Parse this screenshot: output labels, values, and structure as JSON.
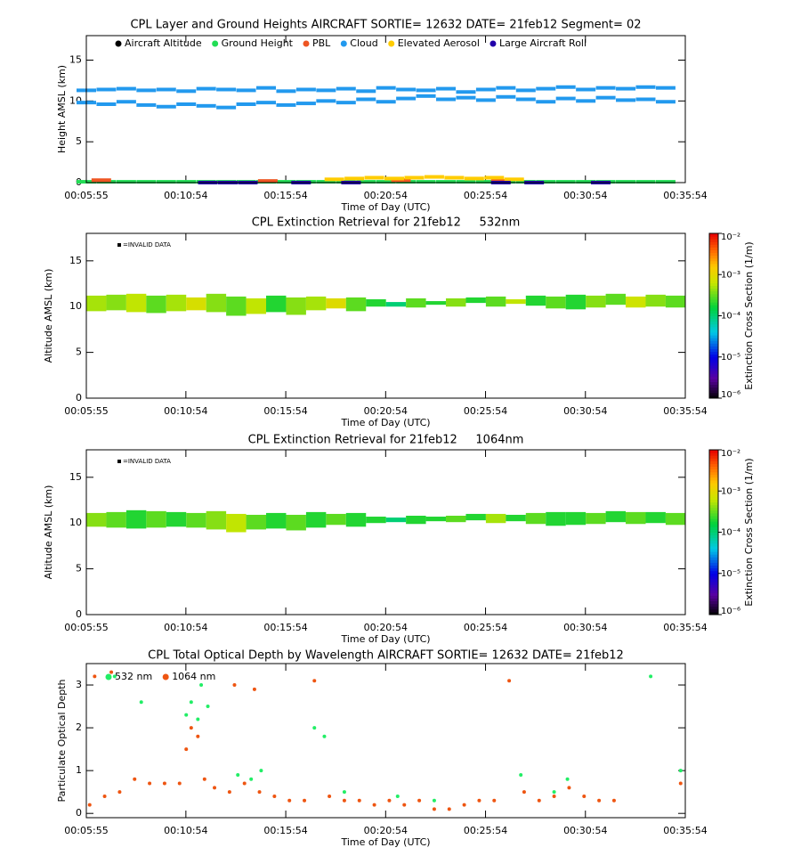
{
  "chart_data": [
    {
      "type": "scatter",
      "marker": "dash",
      "title": "CPL Layer and Ground Heights AIRCRAFT SORTIE= 12632 DATE= 21feb12 Segment= 02",
      "xlabel": "Time of Day (UTC)",
      "ylabel": "Height AMSL (km)",
      "xlim": [
        355,
        2154
      ],
      "ylim": [
        0,
        18
      ],
      "yticks": [
        0,
        5,
        10,
        15
      ],
      "xticks": [
        {
          "value": 355,
          "label": "00:05:55"
        },
        {
          "value": 654,
          "label": "00:10:54"
        },
        {
          "value": 954,
          "label": "00:15:54"
        },
        {
          "value": 1254,
          "label": "00:20:54"
        },
        {
          "value": 1554,
          "label": "00:25:54"
        },
        {
          "value": 1854,
          "label": "00:30:54"
        },
        {
          "value": 2154,
          "label": "00:35:54"
        }
      ],
      "series": [
        {
          "name": "Aircraft Altitude",
          "color": "#000000",
          "x": [],
          "values": []
        },
        {
          "name": "Ground Height",
          "color": "#22dd55",
          "x": [
            355,
            415,
            475,
            535,
            595,
            655,
            715,
            775,
            835,
            895,
            955,
            1015,
            1075,
            1135,
            1195,
            1255,
            1315,
            1375,
            1435,
            1495,
            1555,
            1615,
            1675,
            1735,
            1795,
            1855,
            1915,
            1975,
            2035,
            2095
          ],
          "values": [
            0.1,
            0.1,
            0.1,
            0.1,
            0.1,
            0.1,
            0.1,
            0.1,
            0.1,
            0.1,
            0.1,
            0.1,
            0.1,
            0.1,
            0.1,
            0.1,
            0.1,
            0.1,
            0.1,
            0.1,
            0.1,
            0.1,
            0.1,
            0.1,
            0.1,
            0.1,
            0.1,
            0.1,
            0.1,
            0.1
          ]
        },
        {
          "name": "PBL",
          "color": "#ee5522",
          "x": [
            400,
            900,
            1300,
            1600
          ],
          "values": [
            0.3,
            0.2,
            0.3,
            0.2
          ]
        },
        {
          "name": "Cloud",
          "color": "#2299ee",
          "x": [
            355,
            415,
            475,
            535,
            595,
            655,
            715,
            775,
            835,
            895,
            955,
            1015,
            1075,
            1135,
            1195,
            1255,
            1315,
            1375,
            1435,
            1495,
            1555,
            1615,
            1675,
            1735,
            1795,
            1855,
            1915,
            1975,
            2035,
            2095,
            355,
            415,
            475,
            535,
            595,
            655,
            715,
            775,
            835,
            895,
            955,
            1015,
            1075,
            1135,
            1195,
            1255,
            1315,
            1375,
            1435,
            1495,
            1555,
            1615,
            1675,
            1735,
            1795,
            1855,
            1915,
            1975,
            2035,
            2095
          ],
          "values": [
            11.3,
            11.4,
            11.5,
            11.3,
            11.4,
            11.2,
            11.5,
            11.4,
            11.3,
            11.6,
            11.2,
            11.4,
            11.3,
            11.5,
            11.2,
            11.6,
            11.4,
            11.3,
            11.5,
            11.1,
            11.4,
            11.6,
            11.3,
            11.5,
            11.7,
            11.4,
            11.6,
            11.5,
            11.7,
            11.6,
            9.8,
            9.6,
            9.9,
            9.5,
            9.3,
            9.6,
            9.4,
            9.2,
            9.6,
            9.8,
            9.5,
            9.7,
            10.0,
            9.8,
            10.2,
            9.9,
            10.3,
            10.6,
            10.2,
            10.4,
            10.1,
            10.5,
            10.2,
            9.9,
            10.3,
            10.0,
            10.4,
            10.1,
            10.2,
            9.9
          ]
        },
        {
          "name": "Elevated Aerosol",
          "color": "#ffcc00",
          "x": [
            1100,
            1160,
            1220,
            1280,
            1340,
            1400,
            1460,
            1520,
            1580,
            1640
          ],
          "values": [
            0.4,
            0.5,
            0.6,
            0.5,
            0.6,
            0.7,
            0.6,
            0.5,
            0.6,
            0.4
          ]
        },
        {
          "name": "Large Aircraft Roll",
          "color": "#2200aa",
          "x": [
            720,
            780,
            840,
            1000,
            1150,
            1600,
            1700,
            1900
          ],
          "values": [
            0,
            0,
            0,
            0,
            0,
            0,
            0,
            0
          ]
        }
      ]
    },
    {
      "type": "curtain",
      "title": "CPL Extinction Retrieval for 21feb12     532nm",
      "xlabel": "Time of Day (UTC)",
      "ylabel": "Altitude AMSL (km)",
      "note": "=INVALID DATA",
      "colorbar_label": "Extinction Cross Section (1/m)",
      "log_color": true,
      "clim": [
        1e-06,
        0.01
      ],
      "cticks": [
        {
          "value": 1e-06,
          "label": "10⁻⁶"
        },
        {
          "value": 1e-05,
          "label": "10⁻⁵"
        },
        {
          "value": 0.0001,
          "label": "10⁻⁴"
        },
        {
          "value": 0.001,
          "label": "10⁻³"
        },
        {
          "value": 0.01,
          "label": "10⁻²"
        }
      ],
      "xlim": [
        355,
        2154
      ],
      "ylim": [
        0,
        18
      ],
      "yticks": [
        0,
        5,
        10,
        15
      ],
      "xticks": [
        {
          "value": 355,
          "label": "00:05:55"
        },
        {
          "value": 654,
          "label": "00:10:54"
        },
        {
          "value": 954,
          "label": "00:15:54"
        },
        {
          "value": 1254,
          "label": "00:20:54"
        },
        {
          "value": 1554,
          "label": "00:25:54"
        },
        {
          "value": 1854,
          "label": "00:30:54"
        },
        {
          "value": 2154,
          "label": "00:35:54"
        }
      ],
      "x": [
        355,
        415,
        475,
        535,
        595,
        655,
        715,
        775,
        835,
        895,
        955,
        1015,
        1075,
        1135,
        1195,
        1255,
        1315,
        1375,
        1435,
        1495,
        1555,
        1615,
        1675,
        1735,
        1795,
        1855,
        1915,
        1975,
        2035,
        2095
      ],
      "base": [
        9.5,
        9.6,
        9.4,
        9.3,
        9.5,
        9.6,
        9.4,
        9.0,
        9.2,
        9.4,
        9.1,
        9.6,
        9.8,
        9.5,
        10.0,
        10.0,
        9.9,
        10.2,
        10.0,
        10.4,
        10.0,
        10.3,
        10.1,
        9.8,
        9.7,
        9.9,
        10.2,
        9.9,
        10.0,
        9.9
      ],
      "top": [
        11.2,
        11.3,
        11.4,
        11.2,
        11.3,
        11.0,
        11.4,
        11.1,
        10.9,
        11.2,
        11.0,
        11.1,
        10.9,
        11.0,
        10.8,
        10.5,
        10.9,
        10.6,
        10.9,
        11.0,
        11.1,
        10.8,
        11.2,
        11.1,
        11.3,
        11.2,
        11.4,
        11.1,
        11.3,
        11.2
      ],
      "values": [
        0.0005,
        0.0004,
        0.0006,
        0.0003,
        0.0005,
        0.0008,
        0.0004,
        0.0003,
        0.0006,
        0.0002,
        0.0004,
        0.0005,
        0.0009,
        0.0003,
        0.0002,
        0.0001,
        0.0003,
        0.0002,
        0.0004,
        0.0002,
        0.0003,
        0.0006,
        0.0002,
        0.0003,
        0.0002,
        0.0004,
        0.0003,
        0.0007,
        0.0004,
        0.0003
      ]
    },
    {
      "type": "curtain",
      "title": "CPL Extinction Retrieval for 21feb12     1064nm",
      "xlabel": "Time of Day (UTC)",
      "ylabel": "Altitude AMSL (km)",
      "note": "=INVALID DATA",
      "colorbar_label": "Extinction Cross Section (1/m)",
      "log_color": true,
      "clim": [
        1e-06,
        0.01
      ],
      "cticks": [
        {
          "value": 1e-06,
          "label": "10⁻⁶"
        },
        {
          "value": 1e-05,
          "label": "10⁻⁵"
        },
        {
          "value": 0.0001,
          "label": "10⁻⁴"
        },
        {
          "value": 0.001,
          "label": "10⁻³"
        },
        {
          "value": 0.01,
          "label": "10⁻²"
        }
      ],
      "xlim": [
        355,
        2154
      ],
      "ylim": [
        0,
        18
      ],
      "yticks": [
        0,
        5,
        10,
        15
      ],
      "xticks": [
        {
          "value": 355,
          "label": "00:05:55"
        },
        {
          "value": 654,
          "label": "00:10:54"
        },
        {
          "value": 954,
          "label": "00:15:54"
        },
        {
          "value": 1254,
          "label": "00:20:54"
        },
        {
          "value": 1554,
          "label": "00:25:54"
        },
        {
          "value": 1854,
          "label": "00:30:54"
        },
        {
          "value": 2154,
          "label": "00:35:54"
        }
      ],
      "x": [
        355,
        415,
        475,
        535,
        595,
        655,
        715,
        775,
        835,
        895,
        955,
        1015,
        1075,
        1135,
        1195,
        1255,
        1315,
        1375,
        1435,
        1495,
        1555,
        1615,
        1675,
        1735,
        1795,
        1855,
        1915,
        1975,
        2035,
        2095
      ],
      "base": [
        9.6,
        9.5,
        9.4,
        9.5,
        9.6,
        9.5,
        9.3,
        9.0,
        9.3,
        9.4,
        9.2,
        9.5,
        9.8,
        9.6,
        10.0,
        10.1,
        9.9,
        10.2,
        10.1,
        10.3,
        10.0,
        10.2,
        9.9,
        9.7,
        9.8,
        9.9,
        10.1,
        9.9,
        10.0,
        9.8
      ],
      "top": [
        11.1,
        11.2,
        11.4,
        11.3,
        11.2,
        11.1,
        11.3,
        11.0,
        10.9,
        11.1,
        10.9,
        11.2,
        11.0,
        11.1,
        10.7,
        10.6,
        10.8,
        10.7,
        10.8,
        11.0,
        11.0,
        10.9,
        11.1,
        11.2,
        11.2,
        11.1,
        11.3,
        11.2,
        11.2,
        11.1
      ],
      "values": [
        0.0004,
        0.0003,
        0.0002,
        0.0003,
        0.0002,
        0.0003,
        0.0004,
        0.0006,
        0.0003,
        0.0002,
        0.0003,
        0.0002,
        0.0003,
        0.0002,
        0.0002,
        0.0001,
        0.0002,
        0.0002,
        0.0003,
        0.0002,
        0.0005,
        0.0002,
        0.0003,
        0.0002,
        0.0002,
        0.0003,
        0.0002,
        0.0003,
        0.0002,
        0.0003
      ]
    },
    {
      "type": "scatter",
      "marker": "dot",
      "title": "CPL Total Optical Depth by Wavelength AIRCRAFT SORTIE= 12632 DATE= 21feb12",
      "xlabel": "Time of Day (UTC)",
      "ylabel": "Particulate Optical Depth",
      "xlim": [
        355,
        2154
      ],
      "ylim": [
        -0.1,
        3.5
      ],
      "yticks": [
        0,
        1,
        2,
        3
      ],
      "xticks": [
        {
          "value": 355,
          "label": "00:05:55"
        },
        {
          "value": 654,
          "label": "00:10:54"
        },
        {
          "value": 954,
          "label": "00:15:54"
        },
        {
          "value": 1254,
          "label": "00:20:54"
        },
        {
          "value": 1554,
          "label": "00:25:54"
        },
        {
          "value": 1854,
          "label": "00:30:54"
        },
        {
          "value": 2154,
          "label": "00:35:54"
        }
      ],
      "series": [
        {
          "name": "532 nm",
          "color": "#22ee66",
          "x": [
            440,
            520,
            655,
            670,
            690,
            700,
            720,
            810,
            850,
            880,
            1040,
            1070,
            1130,
            1290,
            1400,
            1660,
            1760,
            1800,
            2050,
            2140
          ],
          "values": [
            3.2,
            2.6,
            2.3,
            2.6,
            2.2,
            3.0,
            2.5,
            0.9,
            0.8,
            1.0,
            2.0,
            1.8,
            0.5,
            0.4,
            0.3,
            0.9,
            0.5,
            0.8,
            3.2,
            1.0
          ]
        },
        {
          "name": "1064 nm",
          "color": "#ee5511",
          "x": [
            365,
            380,
            410,
            430,
            455,
            500,
            545,
            590,
            635,
            655,
            670,
            690,
            710,
            740,
            785,
            800,
            830,
            860,
            875,
            920,
            965,
            1010,
            1040,
            1085,
            1130,
            1175,
            1220,
            1265,
            1310,
            1355,
            1400,
            1445,
            1490,
            1535,
            1580,
            1625,
            1670,
            1715,
            1760,
            1805,
            1850,
            1895,
            1940,
            2140
          ],
          "values": [
            0.2,
            3.2,
            0.4,
            3.3,
            0.5,
            0.8,
            0.7,
            0.7,
            0.7,
            1.5,
            2.0,
            1.8,
            0.8,
            0.6,
            0.5,
            3.0,
            0.7,
            2.9,
            0.5,
            0.4,
            0.3,
            0.3,
            3.1,
            0.4,
            0.3,
            0.3,
            0.2,
            0.3,
            0.2,
            0.3,
            0.1,
            0.1,
            0.2,
            0.3,
            0.3,
            3.1,
            0.5,
            0.3,
            0.4,
            0.6,
            0.4,
            0.3,
            0.3,
            0.7
          ]
        }
      ]
    }
  ]
}
